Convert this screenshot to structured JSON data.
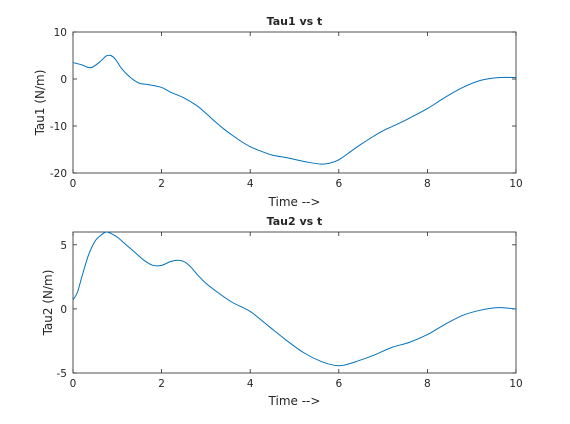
{
  "chart_data": [
    {
      "type": "line",
      "title": "Tau1 vs t",
      "xlabel": "Time -->",
      "ylabel": "Tau1 (N/m)",
      "xlim": [
        0,
        10
      ],
      "ylim": [
        -20,
        10
      ],
      "x_ticks": [
        "0",
        "2",
        "4",
        "6",
        "8",
        "10"
      ],
      "y_ticks": [
        "-20",
        "-10",
        "0",
        "10"
      ],
      "grid": false,
      "color": "#0072BD",
      "series": [
        {
          "x": [
            0,
            0.2,
            0.4,
            0.6,
            0.75,
            0.85,
            0.95,
            1.1,
            1.3,
            1.5,
            1.7,
            2.0,
            2.2,
            2.5,
            2.8,
            3.0,
            3.2,
            3.4,
            3.6,
            3.8,
            4.0,
            4.2,
            4.5,
            4.8,
            5.0,
            5.3,
            5.6,
            5.8,
            6.0,
            6.2,
            6.5,
            6.8,
            7.0,
            7.3,
            7.6,
            8.0,
            8.4,
            8.8,
            9.2,
            9.6,
            10.0
          ],
          "values": [
            3.5,
            3.0,
            2.4,
            3.6,
            4.9,
            5.0,
            4.3,
            2.2,
            0.3,
            -0.9,
            -1.2,
            -1.8,
            -2.8,
            -4.0,
            -5.7,
            -7.3,
            -9.0,
            -10.6,
            -12.0,
            -13.3,
            -14.4,
            -15.2,
            -16.2,
            -16.7,
            -17.1,
            -17.7,
            -18.1,
            -17.9,
            -17.2,
            -15.9,
            -13.9,
            -12.1,
            -11.0,
            -9.7,
            -8.3,
            -6.3,
            -3.9,
            -1.8,
            -0.3,
            0.3,
            0.3
          ]
        }
      ]
    },
    {
      "type": "line",
      "title": "Tau2 vs t",
      "xlabel": "Time -->",
      "ylabel": "Tau2 (N/m)",
      "xlim": [
        0,
        10
      ],
      "ylim": [
        -5,
        6
      ],
      "x_ticks": [
        "0",
        "2",
        "4",
        "6",
        "8",
        "10"
      ],
      "y_ticks": [
        "-5",
        "0",
        "5"
      ],
      "grid": false,
      "color": "#0072BD",
      "series": [
        {
          "x": [
            0,
            0.1,
            0.2,
            0.35,
            0.5,
            0.65,
            0.75,
            0.85,
            1.0,
            1.2,
            1.4,
            1.6,
            1.8,
            2.0,
            2.2,
            2.35,
            2.5,
            2.65,
            2.8,
            3.0,
            3.3,
            3.6,
            4.0,
            4.4,
            4.8,
            5.2,
            5.6,
            5.9,
            6.1,
            6.4,
            6.8,
            7.2,
            7.6,
            8.0,
            8.4,
            8.8,
            9.2,
            9.6,
            10.0
          ],
          "values": [
            0.7,
            1.3,
            2.5,
            4.2,
            5.3,
            5.8,
            6.0,
            5.9,
            5.6,
            5.0,
            4.4,
            3.8,
            3.4,
            3.4,
            3.7,
            3.8,
            3.7,
            3.3,
            2.7,
            2.0,
            1.2,
            0.5,
            -0.2,
            -1.3,
            -2.4,
            -3.4,
            -4.1,
            -4.4,
            -4.4,
            -4.1,
            -3.6,
            -3.0,
            -2.6,
            -2.0,
            -1.2,
            -0.5,
            -0.1,
            0.1,
            0.0
          ]
        }
      ]
    }
  ]
}
